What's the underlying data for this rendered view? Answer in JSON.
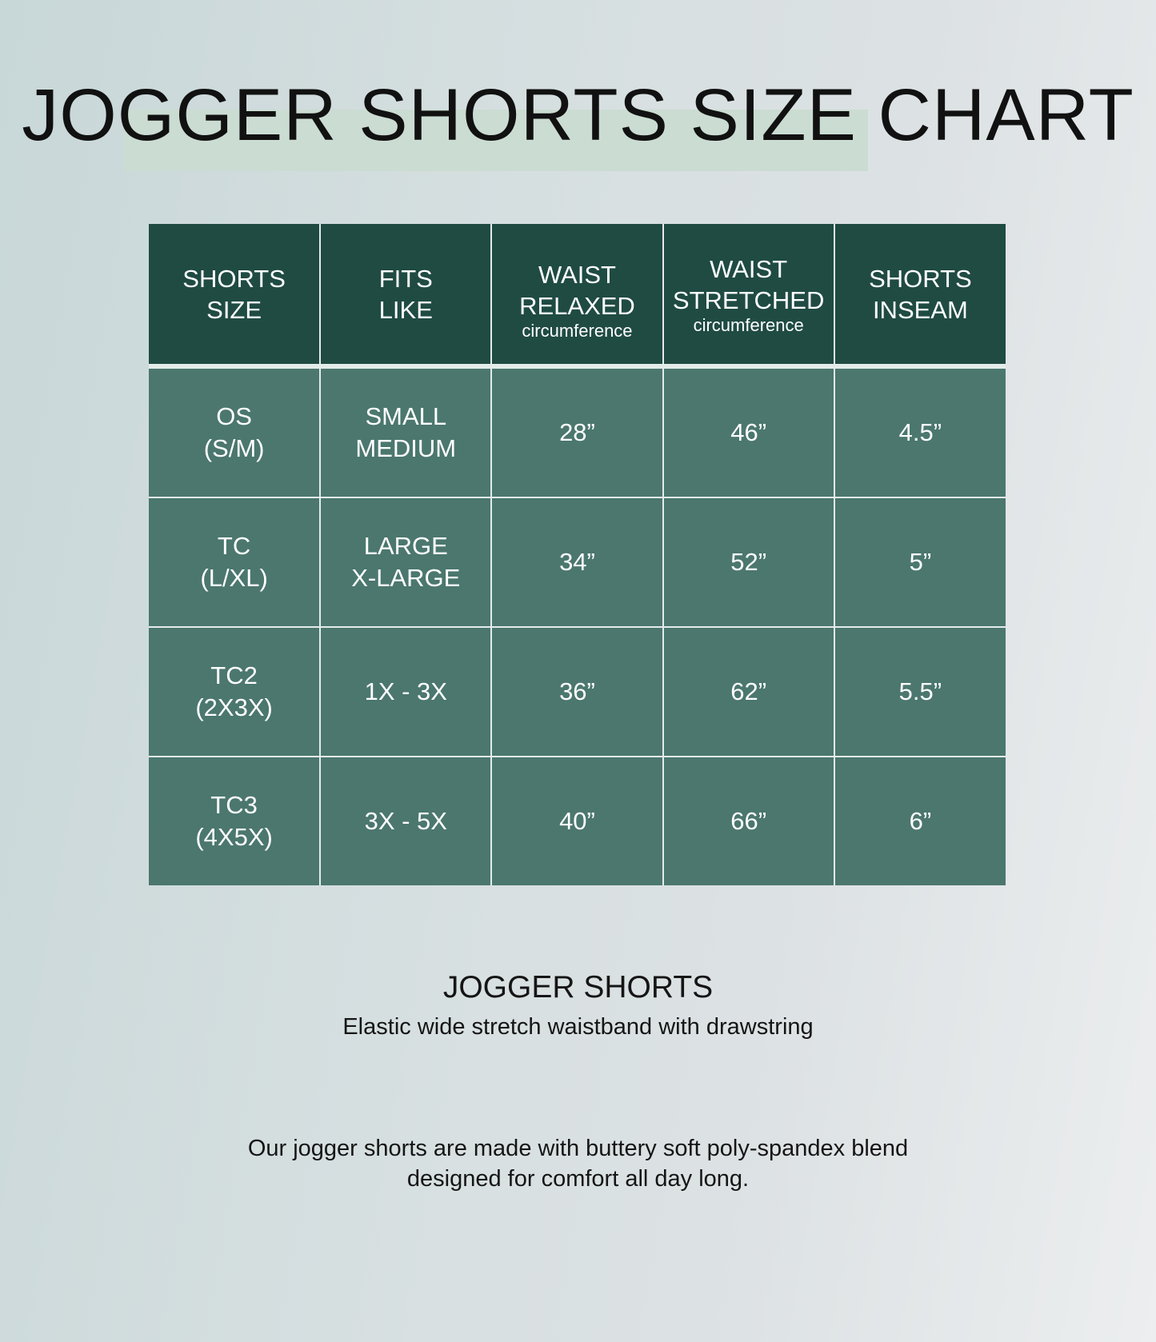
{
  "title": "JOGGER SHORTS SIZE CHART",
  "colors": {
    "header_bg": "#1f4b43",
    "row_bg": "#4b776e",
    "title_highlight": "#cbdcd2"
  },
  "table": {
    "headers": [
      {
        "line1": "SHORTS",
        "line2": "SIZE",
        "sub": ""
      },
      {
        "line1": "FITS",
        "line2": "LIKE",
        "sub": ""
      },
      {
        "line1": "WAIST",
        "line2": "RELAXED",
        "sub": "circumference"
      },
      {
        "line1": "WAIST",
        "line2": "STRETCHED",
        "sub": "circumference"
      },
      {
        "line1": "SHORTS",
        "line2": "INSEAM",
        "sub": ""
      }
    ],
    "rows": [
      {
        "size1": "OS",
        "size2": "(S/M)",
        "fit1": "SMALL",
        "fit2": "MEDIUM",
        "relaxed": "28”",
        "stretched": "46”",
        "inseam": "4.5”"
      },
      {
        "size1": "TC",
        "size2": "(L/XL)",
        "fit1": "LARGE",
        "fit2": "X-LARGE",
        "relaxed": "34”",
        "stretched": "52”",
        "inseam": "5”"
      },
      {
        "size1": "TC2",
        "size2": "(2X3X)",
        "fit1": "1X - 3X",
        "fit2": "",
        "relaxed": "36”",
        "stretched": "62”",
        "inseam": "5.5”"
      },
      {
        "size1": "TC3",
        "size2": "(4X5X)",
        "fit1": "3X - 5X",
        "fit2": "",
        "relaxed": "40”",
        "stretched": "66”",
        "inseam": "6”"
      }
    ]
  },
  "product": {
    "name": "JOGGER SHORTS",
    "tagline": "Elastic wide stretch waistband with drawstring",
    "description_line1": "Our jogger shorts are made with buttery soft poly-spandex blend",
    "description_line2": "designed for comfort all day long."
  }
}
